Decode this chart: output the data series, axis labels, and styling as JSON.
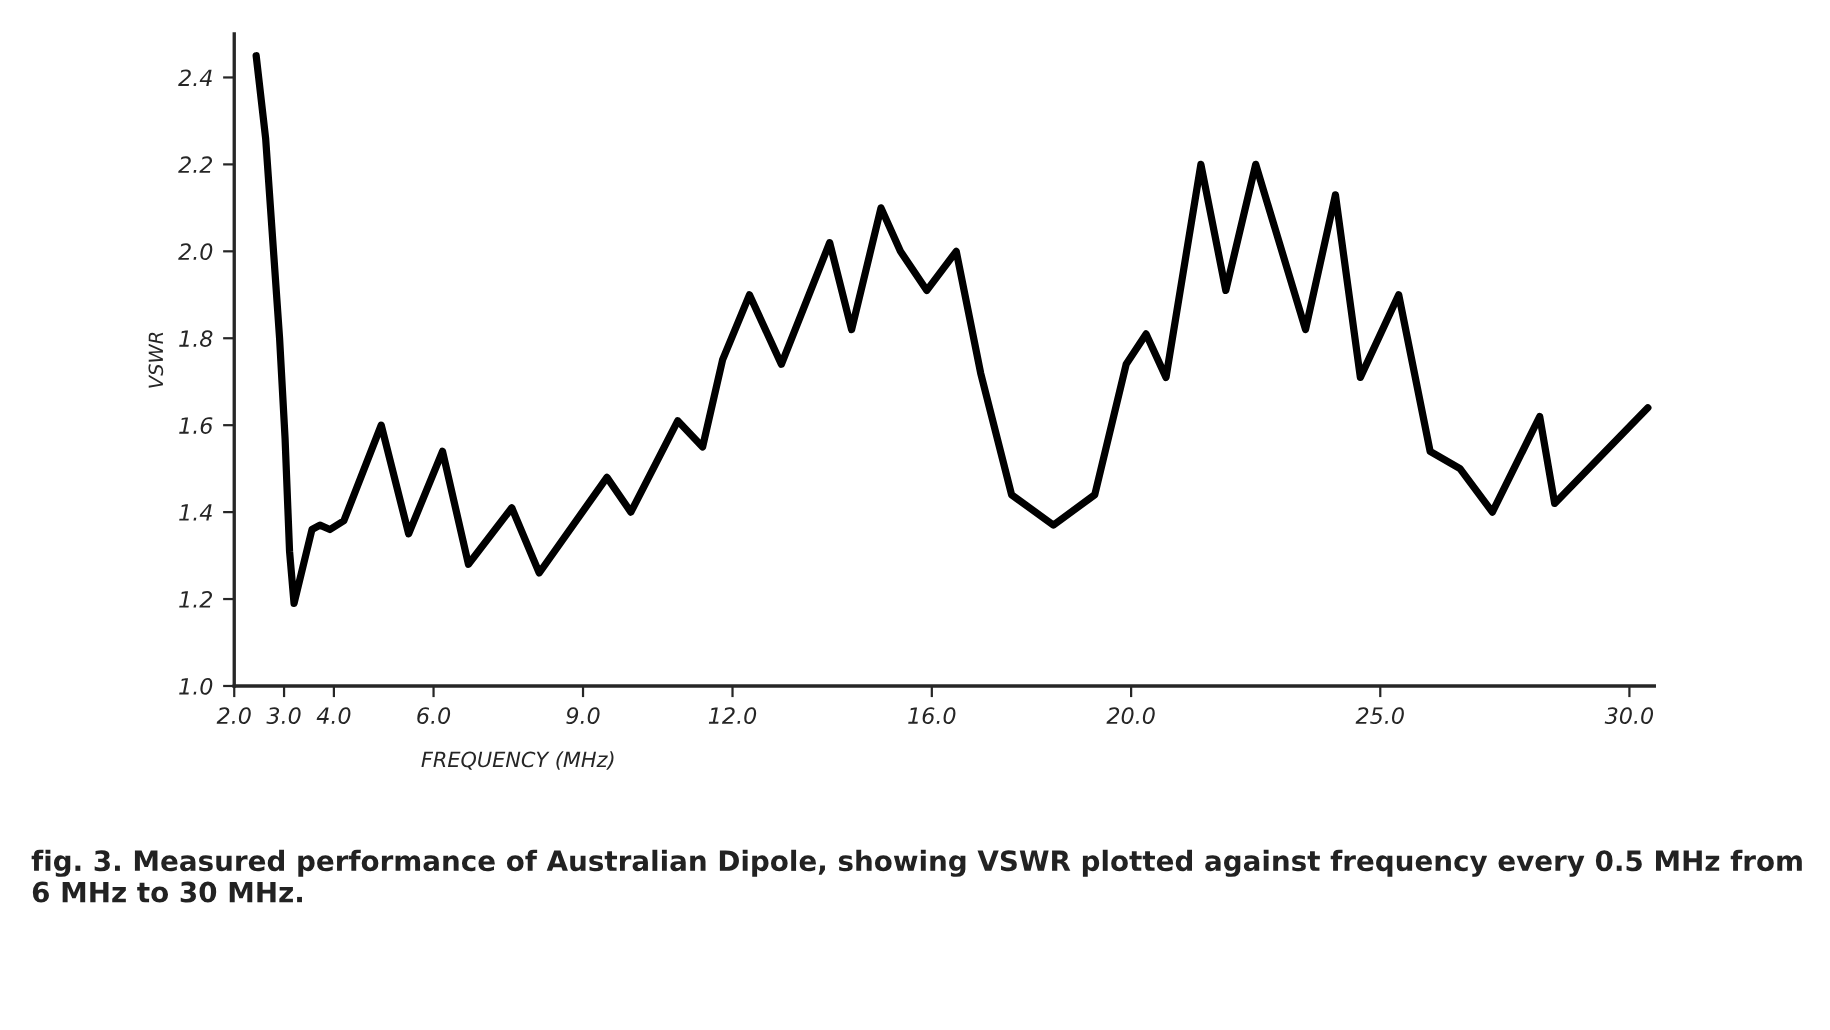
{
  "chart_data": {
    "type": "line",
    "xlabel": "FREQUENCY (MHz)",
    "ylabel": "VSWR",
    "annotations": [
      "fig. 3. Measured performance of Australian Dipole, showing VSWR plotted against frequency every 0.5 MHz from 6 MHz to 30 MHz."
    ],
    "x": [
      2.44,
      2.63,
      2.91,
      3.02,
      3.11,
      3.2,
      3.56,
      3.72,
      3.92,
      4.2,
      4.95,
      5.5,
      6.18,
      6.7,
      7.57,
      8.12,
      9.48,
      9.96,
      10.9,
      11.4,
      11.8,
      12.34,
      12.98,
      13.95,
      14.39,
      14.98,
      15.37,
      15.9,
      16.49,
      16.98,
      17.6,
      18.44,
      19.27,
      19.9,
      20.3,
      20.7,
      21.4,
      21.9,
      22.5,
      23.5,
      24.1,
      24.6,
      25.37,
      26.0,
      26.6,
      27.25,
      28.2,
      28.5,
      30.37
    ],
    "series": [
      {
        "color": "#000000",
        "values": [
          2.45,
          2.26,
          1.8,
          1.57,
          1.31,
          1.19,
          1.36,
          1.37,
          1.36,
          1.38,
          1.6,
          1.35,
          1.54,
          1.28,
          1.41,
          1.26,
          1.48,
          1.4,
          1.61,
          1.55,
          1.75,
          1.9,
          1.74,
          2.02,
          1.82,
          2.1,
          2.0,
          1.91,
          2.0,
          1.72,
          1.44,
          1.37,
          1.44,
          1.74,
          1.81,
          1.71,
          2.2,
          1.91,
          2.2,
          1.82,
          2.13,
          1.71,
          1.9,
          1.54,
          1.5,
          1.4,
          1.62,
          1.42,
          1.64
        ]
      }
    ],
    "xlim": [
      2.0,
      30.5
    ],
    "ylim": [
      1.0,
      2.5
    ],
    "xticks": [
      {
        "value": 2,
        "label": "2.0"
      },
      {
        "value": 3,
        "label": "3.0"
      },
      {
        "value": 4,
        "label": "4.0"
      },
      {
        "value": 6,
        "label": "6.0"
      },
      {
        "value": 9,
        "label": "9.0"
      },
      {
        "value": 12,
        "label": "12.0"
      },
      {
        "value": 16,
        "label": "16.0"
      },
      {
        "value": 20,
        "label": "20.0"
      },
      {
        "value": 25,
        "label": "25.0"
      },
      {
        "value": 30,
        "label": "30.0"
      }
    ],
    "yticks": [
      {
        "value": 1.0,
        "label": "1.0"
      },
      1.2,
      1.4,
      1.6,
      1.8,
      {
        "value": 2.0,
        "label": "2.0"
      },
      2.2,
      2.4
    ],
    "grid": false,
    "legend": false,
    "marker": "none",
    "line_style": "solid"
  }
}
